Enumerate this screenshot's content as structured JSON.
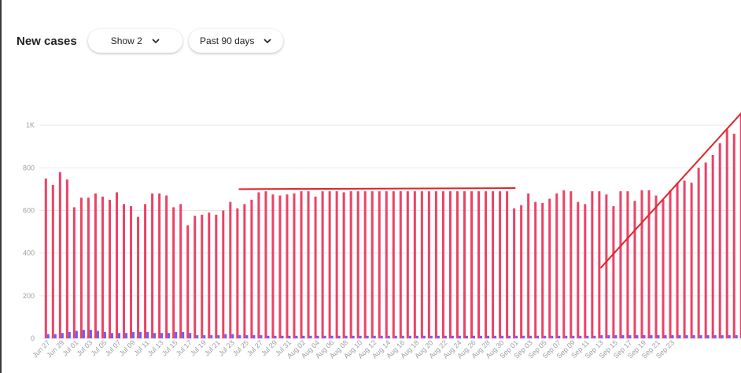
{
  "header": {
    "title": "New cases",
    "dropdown_series": "Show 2",
    "dropdown_range": "Past 90 days"
  },
  "icons": {
    "dropdown": "chevron-down-icon"
  },
  "colors": {
    "primary_bar": "#EC4266",
    "secondary_bar": "#6F5BF5",
    "annotation": "#E0242B",
    "grid": "#E8E8E8"
  },
  "chart_data": {
    "type": "bar",
    "title": "New cases",
    "ylim": [
      0,
      1100
    ],
    "y_ticks": [
      {
        "value": 0,
        "label": "0"
      },
      {
        "value": 200,
        "label": "200"
      },
      {
        "value": 400,
        "label": "400"
      },
      {
        "value": 600,
        "label": "600"
      },
      {
        "value": 800,
        "label": "800"
      },
      {
        "value": 1000,
        "label": "1K"
      }
    ],
    "grid": true,
    "start_label": "Jun 27",
    "tick_labels": [
      "Jun 27",
      "Jun 29",
      "Jul 01",
      "Jul 03",
      "Jul 05",
      "Jul 07",
      "Jul 09",
      "Jul 11",
      "Jul 13",
      "Jul 15",
      "Jul 17",
      "Jul 19",
      "Jul 21",
      "Jul 23",
      "Jul 25",
      "Jul 27",
      "Jul 29",
      "Jul 31",
      "Aug 02",
      "Aug 04",
      "Aug 06",
      "Aug 08",
      "Aug 10",
      "Aug 12",
      "Aug 14",
      "Aug 16",
      "Aug 18",
      "Aug 20",
      "Aug 22",
      "Aug 24",
      "Aug 26",
      "Aug 28",
      "Aug 30",
      "Sep 01",
      "Sep 03",
      "Sep 05",
      "Sep 07",
      "Sep 09",
      "Sep 11",
      "Sep 13",
      "Sep 15",
      "Sep 17",
      "Sep 19",
      "Sep 21",
      "Sep 23"
    ],
    "series": [
      {
        "values": [
          750,
          720,
          780,
          745,
          615,
          660,
          660,
          680,
          665,
          650,
          685,
          630,
          620,
          570,
          630,
          680,
          680,
          670,
          615,
          630,
          530,
          575,
          580,
          590,
          580,
          600,
          640,
          610,
          630,
          650,
          685,
          690,
          675,
          670,
          675,
          680,
          690,
          690,
          665,
          690,
          690,
          690,
          685,
          690,
          690,
          690,
          690,
          690,
          690,
          690,
          690,
          690,
          690,
          690,
          690,
          690,
          690,
          690,
          690,
          690,
          690,
          690,
          690,
          690,
          690,
          690,
          610,
          625,
          680,
          640,
          635,
          655,
          680,
          695,
          690,
          640,
          630,
          690,
          690,
          675,
          620,
          690,
          690,
          645,
          695,
          695,
          670,
          650,
          695,
          730,
          740,
          730,
          800,
          825,
          860,
          915,
          980,
          960,
          1050
        ]
      },
      {
        "values": [
          20,
          20,
          25,
          30,
          35,
          40,
          40,
          35,
          30,
          25,
          25,
          25,
          30,
          30,
          30,
          25,
          25,
          25,
          30,
          30,
          25,
          15,
          15,
          15,
          15,
          20,
          20,
          15,
          15,
          15,
          15,
          12,
          12,
          12,
          12,
          12,
          12,
          12,
          12,
          12,
          12,
          12,
          12,
          12,
          12,
          12,
          12,
          12,
          12,
          12,
          12,
          12,
          12,
          12,
          12,
          12,
          12,
          12,
          12,
          12,
          12,
          12,
          12,
          12,
          12,
          12,
          12,
          12,
          12,
          12,
          12,
          12,
          12,
          12,
          12,
          12,
          12,
          12,
          15,
          15,
          15,
          15,
          15,
          15,
          15,
          15,
          15,
          15,
          15,
          15,
          15,
          15,
          15,
          15,
          15,
          15,
          15,
          15,
          15
        ]
      }
    ],
    "annotations": [
      {
        "type": "line",
        "from": [
          27,
          700
        ],
        "to": [
          66,
          705
        ]
      },
      {
        "type": "line",
        "from": [
          78,
          330
        ],
        "to": [
          99,
          1100
        ]
      }
    ]
  }
}
